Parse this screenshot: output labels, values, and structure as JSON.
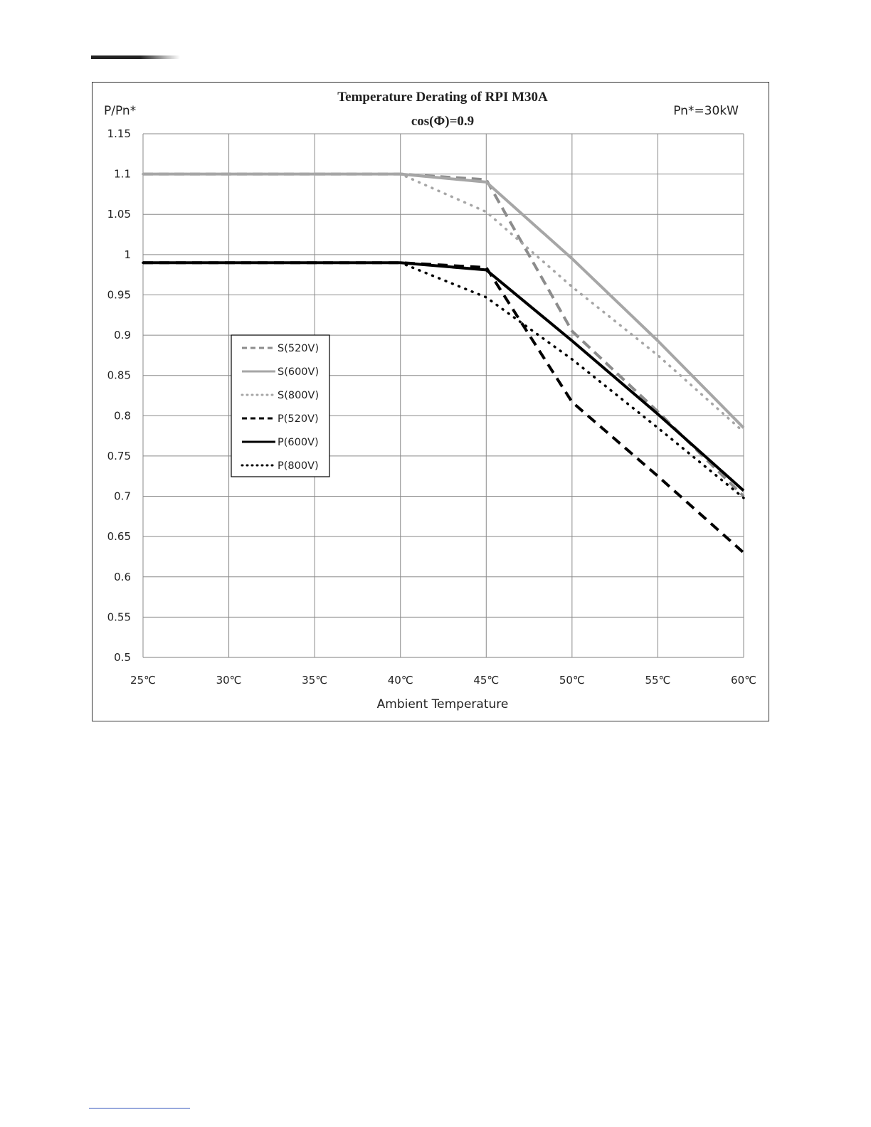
{
  "page": {
    "header_rule": "header-rule",
    "footer_rule": "footer-rule"
  },
  "chart_data": {
    "type": "line",
    "title": "Temperature Derating of RPI M30A",
    "subtitle": "cos(Φ)=0.9",
    "ylabel": "P/Pn*",
    "xlabel": "Ambient Temperature",
    "annotation": "Pn*=30kW",
    "x": [
      25,
      30,
      35,
      40,
      45,
      50,
      55,
      60
    ],
    "x_tick_labels": [
      "25℃",
      "30℃",
      "35℃",
      "40℃",
      "45℃",
      "50℃",
      "55℃",
      "60℃"
    ],
    "ylim": [
      0.5,
      1.15
    ],
    "y_ticks": [
      0.5,
      0.55,
      0.6,
      0.65,
      0.7,
      0.75,
      0.8,
      0.85,
      0.9,
      0.95,
      1,
      1.05,
      1.1,
      1.15
    ],
    "y_tick_labels": [
      "0.5",
      "0.55",
      "0.6",
      "0.65",
      "0.7",
      "0.75",
      "0.8",
      "0.85",
      "0.9",
      "0.95",
      "1",
      "1.05",
      "1.1",
      "1.15"
    ],
    "grid": true,
    "legend_position": "left-middle",
    "series": [
      {
        "name": "S(520V)",
        "color": "#8c8c8c",
        "style": "dashed",
        "points": [
          [
            25,
            1.1
          ],
          [
            40,
            1.1
          ],
          [
            45,
            1.093
          ],
          [
            50,
            0.905
          ],
          [
            55,
            0.805
          ],
          [
            60,
            0.7
          ]
        ]
      },
      {
        "name": "S(600V)",
        "color": "#a6a6a6",
        "style": "solid",
        "points": [
          [
            25,
            1.1
          ],
          [
            40,
            1.1
          ],
          [
            45,
            1.09
          ],
          [
            50,
            0.995
          ],
          [
            55,
            0.893
          ],
          [
            60,
            0.785
          ]
        ]
      },
      {
        "name": "S(800V)",
        "color": "#a6a6a6",
        "style": "dotted",
        "points": [
          [
            25,
            1.1
          ],
          [
            40,
            1.1
          ],
          [
            45,
            1.053
          ],
          [
            50,
            0.96
          ],
          [
            55,
            0.875
          ],
          [
            60,
            0.78
          ]
        ]
      },
      {
        "name": "P(520V)",
        "color": "#000000",
        "style": "dashed",
        "points": [
          [
            25,
            0.99
          ],
          [
            40,
            0.99
          ],
          [
            45,
            0.984
          ],
          [
            50,
            0.817
          ],
          [
            55,
            0.725
          ],
          [
            60,
            0.63
          ]
        ]
      },
      {
        "name": "P(600V)",
        "color": "#000000",
        "style": "solid",
        "points": [
          [
            25,
            0.99
          ],
          [
            40,
            0.99
          ],
          [
            45,
            0.981
          ],
          [
            50,
            0.893
          ],
          [
            55,
            0.802
          ],
          [
            60,
            0.707
          ]
        ]
      },
      {
        "name": "P(800V)",
        "color": "#000000",
        "style": "dotted",
        "points": [
          [
            25,
            0.99
          ],
          [
            40,
            0.99
          ],
          [
            45,
            0.947
          ],
          [
            50,
            0.87
          ],
          [
            55,
            0.785
          ],
          [
            60,
            0.698
          ]
        ]
      }
    ]
  }
}
